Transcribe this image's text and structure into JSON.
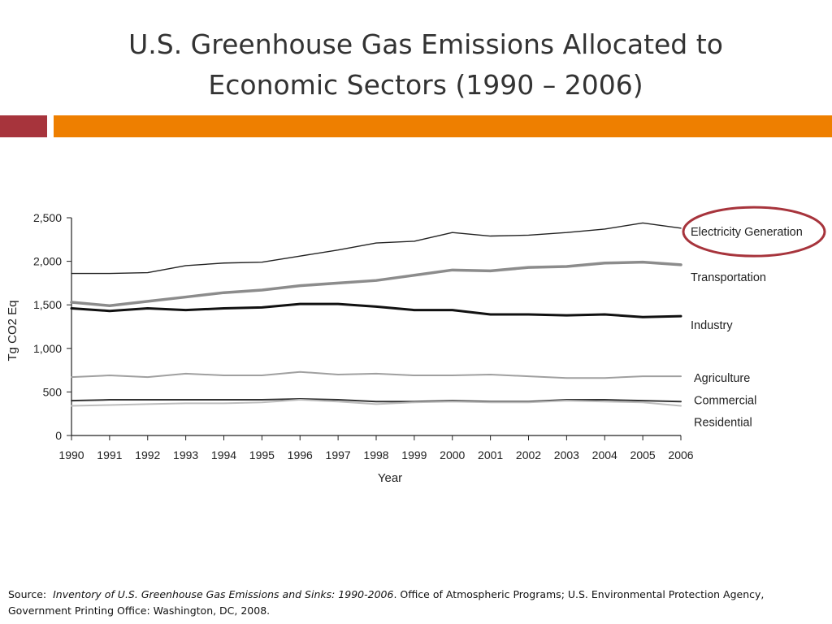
{
  "slide": {
    "title_line1": "U.S. Greenhouse Gas Emissions Allocated to",
    "title_line2": "Economic Sectors (1990 – 2006)",
    "accent_red": "#a7343c",
    "accent_orange": "#ee7f00"
  },
  "footer": {
    "source_label": "Source:",
    "source_title": "Inventory of U.S. Greenhouse Gas Emissions and Sinks:  1990-2006",
    "source_rest": ". Office of Atmospheric Programs; U.S. Environmental Protection Agency,",
    "source_line2": "Government Printing Office: Washington, DC, 2008."
  },
  "chart_data": {
    "type": "line",
    "xlabel": "Year",
    "ylabel": "Tg CO2 Eq",
    "ylim": [
      0,
      2500
    ],
    "yticks": [
      0,
      500,
      1000,
      1500,
      2000,
      2500
    ],
    "ytick_labels": [
      "0",
      "500",
      "1,000",
      "1,500",
      "2,000",
      "2,500"
    ],
    "x": [
      1990,
      1991,
      1992,
      1993,
      1994,
      1995,
      1996,
      1997,
      1998,
      1999,
      2000,
      2001,
      2002,
      2003,
      2004,
      2005,
      2006
    ],
    "legend_placement": "right-inline",
    "highlight": "Electricity Generation",
    "highlight_color": "#a7343c",
    "series": [
      {
        "name": "Electricity Generation",
        "color": "#222222",
        "values": [
          1860,
          1860,
          1870,
          1950,
          1980,
          1990,
          2060,
          2130,
          2210,
          2230,
          2330,
          2290,
          2300,
          2330,
          2370,
          2440,
          2380
        ]
      },
      {
        "name": "Transportation",
        "color": "#8c8c8c",
        "values": [
          1530,
          1490,
          1540,
          1590,
          1640,
          1670,
          1720,
          1750,
          1780,
          1840,
          1900,
          1890,
          1930,
          1940,
          1980,
          1990,
          1960
        ]
      },
      {
        "name": "Industry",
        "color": "#111111",
        "values": [
          1460,
          1430,
          1460,
          1440,
          1460,
          1470,
          1510,
          1510,
          1480,
          1440,
          1440,
          1390,
          1390,
          1380,
          1390,
          1360,
          1370
        ]
      },
      {
        "name": "Agriculture",
        "color": "#a0a0a0",
        "values": [
          670,
          690,
          670,
          710,
          690,
          690,
          730,
          700,
          710,
          690,
          690,
          700,
          680,
          660,
          660,
          680,
          680
        ]
      },
      {
        "name": "Commercial",
        "color": "#333333",
        "values": [
          400,
          410,
          410,
          410,
          410,
          410,
          420,
          410,
          390,
          390,
          400,
          390,
          390,
          410,
          410,
          400,
          390
        ]
      },
      {
        "name": "Residential",
        "color": "#bdbdbd",
        "values": [
          340,
          350,
          360,
          370,
          370,
          380,
          410,
          390,
          360,
          380,
          390,
          380,
          380,
          400,
          390,
          380,
          340
        ]
      }
    ]
  }
}
